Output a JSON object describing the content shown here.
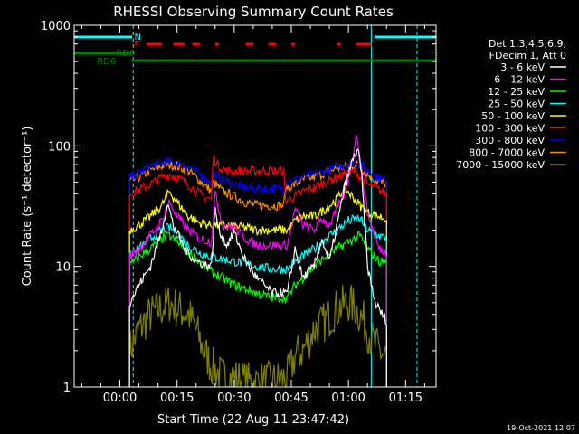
{
  "chart_data": {
    "type": "line",
    "title": "RHESSI Observing Summary Count Rates",
    "xlabel": "Start Time (22-Aug-11 23:47:42)",
    "ylabel": "Count Rate (s⁻¹ detector⁻¹)",
    "y_scale": "log",
    "ylim": [
      1,
      1000
    ],
    "xlim_minutes": [
      -12,
      83
    ],
    "y_ticks": [
      {
        "value": 1,
        "label": "1"
      },
      {
        "value": 10,
        "label": "10"
      },
      {
        "value": 100,
        "label": "100"
      },
      {
        "value": 1000,
        "label": "1000"
      }
    ],
    "x_ticks": [
      {
        "minutes": 0,
        "label": "00:00"
      },
      {
        "minutes": 15,
        "label": "00:15"
      },
      {
        "minutes": 30,
        "label": "00:30"
      },
      {
        "minutes": 45,
        "label": "00:45"
      },
      {
        "minutes": 60,
        "label": "01:00"
      },
      {
        "minutes": 75,
        "label": "01:15"
      }
    ],
    "legend_header": [
      "Det 1,3,4,5,6,9,",
      "FDecim 1, Att 0"
    ],
    "legend_position": "right",
    "series": [
      {
        "name": "3 - 6 keV",
        "color": "#ffffff",
        "points": [
          [
            2.5,
            5
          ],
          [
            5,
            7
          ],
          [
            8,
            10
          ],
          [
            11,
            20
          ],
          [
            12.5,
            34
          ],
          [
            14,
            22
          ],
          [
            17,
            14
          ],
          [
            20,
            11
          ],
          [
            24,
            10
          ],
          [
            25,
            30
          ],
          [
            26,
            20
          ],
          [
            28,
            15
          ],
          [
            30,
            19
          ],
          [
            33,
            11
          ],
          [
            36,
            8
          ],
          [
            40,
            6
          ],
          [
            44,
            6
          ],
          [
            46,
            14
          ],
          [
            48,
            8
          ],
          [
            51,
            10
          ],
          [
            53,
            17
          ],
          [
            55,
            11
          ],
          [
            57,
            22
          ],
          [
            59,
            45
          ],
          [
            61,
            75
          ],
          [
            62.5,
            95
          ],
          [
            63.5,
            55
          ],
          [
            65,
            10
          ],
          [
            67,
            5
          ],
          [
            70,
            3.5
          ]
        ]
      },
      {
        "name": "6 - 12 keV",
        "color": "#ff00ff",
        "points": [
          [
            2.5,
            12
          ],
          [
            5,
            14
          ],
          [
            8,
            18
          ],
          [
            11,
            24
          ],
          [
            13,
            34
          ],
          [
            15,
            26
          ],
          [
            18,
            20
          ],
          [
            21,
            17
          ],
          [
            24,
            16
          ],
          [
            25,
            40
          ],
          [
            27,
            22
          ],
          [
            30,
            21
          ],
          [
            33,
            17
          ],
          [
            36,
            15
          ],
          [
            40,
            15
          ],
          [
            44,
            15
          ],
          [
            46,
            30
          ],
          [
            48,
            22
          ],
          [
            51,
            20
          ],
          [
            53,
            25
          ],
          [
            55,
            22
          ],
          [
            57,
            30
          ],
          [
            59,
            40
          ],
          [
            61,
            75
          ],
          [
            62,
            130
          ],
          [
            63.5,
            60
          ],
          [
            65,
            28
          ],
          [
            68,
            14
          ],
          [
            70,
            13
          ]
        ]
      },
      {
        "name": "12 - 25 keV",
        "color": "#00ff00",
        "points": [
          [
            2.5,
            10
          ],
          [
            5,
            12
          ],
          [
            8,
            14
          ],
          [
            11,
            17
          ],
          [
            13,
            18
          ],
          [
            15,
            16
          ],
          [
            18,
            13
          ],
          [
            21,
            11
          ],
          [
            24,
            9
          ],
          [
            27,
            8
          ],
          [
            30,
            7
          ],
          [
            33,
            6.5
          ],
          [
            36,
            6
          ],
          [
            40,
            5.5
          ],
          [
            44,
            5.5
          ],
          [
            46,
            7
          ],
          [
            48,
            8
          ],
          [
            51,
            10
          ],
          [
            54,
            12
          ],
          [
            57,
            14
          ],
          [
            60,
            16
          ],
          [
            63,
            18
          ],
          [
            65,
            14
          ],
          [
            68,
            11
          ],
          [
            70,
            11
          ]
        ]
      },
      {
        "name": "25 - 50 keV",
        "color": "#00ffff",
        "points": [
          [
            2.5,
            12
          ],
          [
            5,
            14
          ],
          [
            8,
            17
          ],
          [
            11,
            20
          ],
          [
            13,
            21
          ],
          [
            15,
            19
          ],
          [
            18,
            15
          ],
          [
            21,
            13
          ],
          [
            24,
            12
          ],
          [
            27,
            11.5
          ],
          [
            30,
            11
          ],
          [
            33,
            10.5
          ],
          [
            36,
            10
          ],
          [
            40,
            9.5
          ],
          [
            44,
            9.5
          ],
          [
            46,
            11
          ],
          [
            48,
            12
          ],
          [
            51,
            14
          ],
          [
            54,
            17
          ],
          [
            57,
            20
          ],
          [
            60,
            24
          ],
          [
            63,
            25
          ],
          [
            65,
            20
          ],
          [
            68,
            18
          ],
          [
            70,
            17
          ]
        ]
      },
      {
        "name": "50 - 100 keV",
        "color": "#ffff00",
        "points": [
          [
            2.5,
            20
          ],
          [
            5,
            22
          ],
          [
            8,
            26
          ],
          [
            11,
            32
          ],
          [
            13,
            42
          ],
          [
            15,
            34
          ],
          [
            18,
            26
          ],
          [
            21,
            23
          ],
          [
            24,
            22
          ],
          [
            27,
            22
          ],
          [
            30,
            21.5
          ],
          [
            33,
            21
          ],
          [
            36,
            20
          ],
          [
            40,
            20
          ],
          [
            44,
            20
          ],
          [
            46,
            24
          ],
          [
            48,
            26
          ],
          [
            51,
            26
          ],
          [
            54,
            30
          ],
          [
            57,
            36
          ],
          [
            59,
            45
          ],
          [
            61,
            38
          ],
          [
            63,
            32
          ],
          [
            65,
            28
          ],
          [
            68,
            26
          ],
          [
            70,
            25
          ]
        ]
      },
      {
        "name": "100 - 300 keV",
        "color": "#ff0000",
        "points": [
          [
            2.5,
            40
          ],
          [
            5,
            43
          ],
          [
            8,
            48
          ],
          [
            11,
            55
          ],
          [
            13,
            58
          ],
          [
            15,
            55
          ],
          [
            18,
            48
          ],
          [
            20,
            42
          ],
          [
            22,
            38
          ],
          [
            24,
            36
          ],
          [
            24.5,
            80
          ],
          [
            26,
            68
          ],
          [
            28,
            62
          ],
          [
            30,
            62
          ],
          [
            33,
            62
          ],
          [
            36,
            62
          ],
          [
            40,
            62
          ],
          [
            43,
            62
          ],
          [
            43.5,
            35
          ],
          [
            46,
            38
          ],
          [
            48,
            42
          ],
          [
            51,
            45
          ],
          [
            54,
            50
          ],
          [
            57,
            55
          ],
          [
            60,
            60
          ],
          [
            62,
            62
          ],
          [
            63,
            55
          ],
          [
            65,
            48
          ],
          [
            68,
            43
          ],
          [
            70,
            40
          ]
        ]
      },
      {
        "name": "300 - 800 keV",
        "color": "#0000ff",
        "points": [
          [
            2.5,
            55
          ],
          [
            5,
            60
          ],
          [
            8,
            68
          ],
          [
            11,
            72
          ],
          [
            13,
            74
          ],
          [
            15,
            72
          ],
          [
            18,
            68
          ],
          [
            20,
            62
          ],
          [
            22,
            55
          ],
          [
            24,
            50
          ],
          [
            24.5,
            58
          ],
          [
            27,
            52
          ],
          [
            30,
            48
          ],
          [
            33,
            45
          ],
          [
            36,
            44
          ],
          [
            40,
            44
          ],
          [
            43,
            44
          ],
          [
            43.5,
            50
          ],
          [
            46,
            52
          ],
          [
            48,
            55
          ],
          [
            51,
            58
          ],
          [
            54,
            62
          ],
          [
            57,
            68
          ],
          [
            60,
            72
          ],
          [
            62,
            74
          ],
          [
            63,
            72
          ],
          [
            65,
            62
          ],
          [
            68,
            55
          ],
          [
            70,
            52
          ]
        ]
      },
      {
        "name": "800 - 7000 keV",
        "color": "#ff8c00",
        "points": [
          [
            2.5,
            50
          ],
          [
            5,
            55
          ],
          [
            8,
            62
          ],
          [
            11,
            68
          ],
          [
            13,
            70
          ],
          [
            15,
            68
          ],
          [
            18,
            62
          ],
          [
            20,
            55
          ],
          [
            22,
            48
          ],
          [
            24,
            42
          ],
          [
            24.5,
            50
          ],
          [
            27,
            42
          ],
          [
            30,
            38
          ],
          [
            33,
            34
          ],
          [
            36,
            32
          ],
          [
            40,
            32
          ],
          [
            43,
            32
          ],
          [
            43.5,
            45
          ],
          [
            46,
            48
          ],
          [
            48,
            52
          ],
          [
            51,
            55
          ],
          [
            54,
            60
          ],
          [
            57,
            65
          ],
          [
            60,
            68
          ],
          [
            62,
            70
          ],
          [
            63,
            68
          ],
          [
            65,
            58
          ],
          [
            68,
            50
          ],
          [
            70,
            48
          ]
        ]
      },
      {
        "name": "7000 - 15000 keV",
        "color": "#808000",
        "points": [
          [
            2.5,
            2
          ],
          [
            5,
            3
          ],
          [
            8,
            4
          ],
          [
            11,
            4.5
          ],
          [
            13,
            5
          ],
          [
            15,
            4.5
          ],
          [
            18,
            4
          ],
          [
            20,
            3
          ],
          [
            22,
            2
          ],
          [
            24,
            1.5
          ],
          [
            27,
            1.2
          ],
          [
            30,
            1.2
          ],
          [
            33,
            1.1
          ],
          [
            36,
            1.1
          ],
          [
            40,
            1.1
          ],
          [
            44,
            1.2
          ],
          [
            46,
            1.8
          ],
          [
            48,
            2
          ],
          [
            51,
            3
          ],
          [
            54,
            3.5
          ],
          [
            57,
            4.5
          ],
          [
            60,
            5
          ],
          [
            62,
            4.5
          ],
          [
            64,
            3.5
          ],
          [
            66,
            2.5
          ],
          [
            68,
            2
          ],
          [
            70,
            1.8
          ]
        ]
      }
    ],
    "attenuator_segments": [
      {
        "label": "N",
        "color": "#00ffff",
        "ranges": [
          [
            -12,
            3.2
          ],
          [
            66.8,
            83
          ]
        ]
      }
    ],
    "flare_segments": [
      {
        "label": "F",
        "color": "#ff0000",
        "ranges": [
          [
            7,
            11
          ],
          [
            14,
            17
          ],
          [
            19,
            21
          ],
          [
            25,
            26
          ],
          [
            33,
            35
          ],
          [
            39,
            41
          ],
          [
            45,
            46
          ],
          [
            57,
            58
          ],
          [
            62,
            66
          ]
        ]
      }
    ],
    "decimation_segments": [
      {
        "label": "RD0",
        "color": "#008000",
        "ranges": [
          [
            -12,
            -1
          ],
          [
            -1,
            3
          ]
        ]
      },
      {
        "label": "RD6",
        "color": "#008000",
        "ranges": [
          [
            3,
            21
          ],
          [
            21,
            42
          ],
          [
            42,
            72
          ],
          [
            72,
            83
          ]
        ]
      }
    ],
    "vertical_markers": [
      {
        "minutes": 3.5,
        "color": "#00ffff",
        "style": "dashed"
      },
      {
        "minutes": 66,
        "color": "#00ffff",
        "style": "solid"
      },
      {
        "minutes": 78,
        "color": "#00ffff",
        "style": "dashed"
      }
    ],
    "footer": "19-Oct-2021 12:07"
  }
}
